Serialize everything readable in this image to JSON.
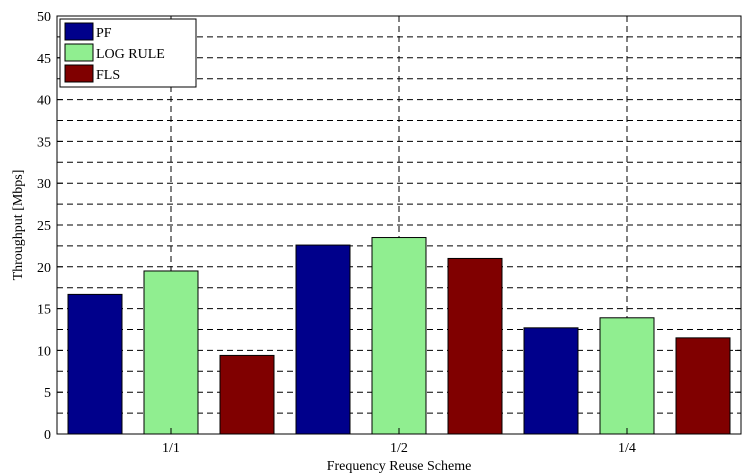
{
  "chart_data": {
    "type": "bar",
    "title": "",
    "xlabel": "Frequency Reuse Scheme",
    "ylabel": "Throughput [Mbps]",
    "ylim": [
      0,
      50
    ],
    "yticks": [
      0,
      5,
      10,
      15,
      20,
      25,
      30,
      35,
      40,
      45,
      50
    ],
    "ygrid_minor_step": 2.5,
    "categories": [
      "1/1",
      "1/2",
      "1/4"
    ],
    "grid": true,
    "legend_position": "top-left",
    "series": [
      {
        "name": "PF",
        "color": "#00008B",
        "values": [
          16.7,
          22.6,
          12.7
        ]
      },
      {
        "name": "LOG RULE",
        "color": "#90EE90",
        "values": [
          19.5,
          23.5,
          13.9
        ]
      },
      {
        "name": "FLS",
        "color": "#800000",
        "values": [
          9.4,
          21.0,
          11.5
        ]
      }
    ]
  }
}
